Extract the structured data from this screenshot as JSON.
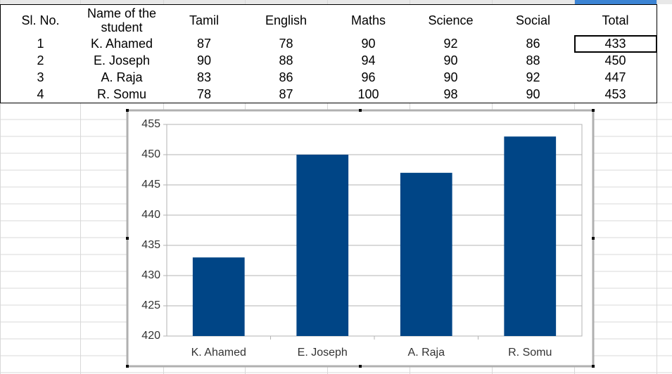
{
  "table": {
    "header": [
      "Sl. No.",
      "Name of the student",
      "Tamil",
      "English",
      "Maths",
      "Science",
      "Social",
      "Total"
    ],
    "rows": [
      [
        1,
        "K. Ahamed",
        87,
        78,
        90,
        92,
        86,
        433
      ],
      [
        2,
        "E. Joseph",
        90,
        88,
        94,
        90,
        88,
        450
      ],
      [
        3,
        "A. Raja",
        83,
        86,
        96,
        90,
        92,
        447
      ],
      [
        4,
        "R. Somu",
        78,
        87,
        100,
        98,
        90,
        453
      ]
    ]
  },
  "chart_data": {
    "type": "bar",
    "categories": [
      "K. Ahamed",
      "E. Joseph",
      "A. Raja",
      "R. Somu"
    ],
    "values": [
      433,
      450,
      447,
      453
    ],
    "color": "#004586",
    "ylim": [
      420,
      455
    ],
    "yticks": [
      420,
      425,
      430,
      435,
      440,
      445,
      450,
      455
    ],
    "grid": true
  }
}
